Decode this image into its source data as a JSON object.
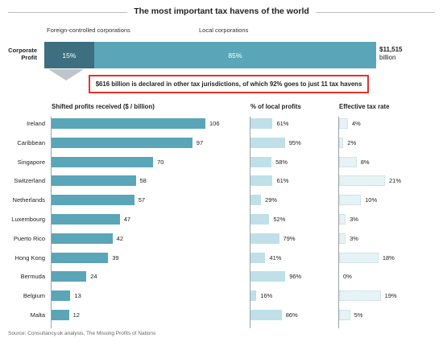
{
  "chart_data": {
    "type": "bar",
    "title": "The most important tax havens of the world",
    "corporate_profit": {
      "label": "Corporate Profit",
      "foreign_label": "Foreign-controlled corporations",
      "local_label": "Local corporations",
      "foreign_share": "15%",
      "local_share": "85%",
      "foreign_value": 15,
      "total_line1": "$11,515",
      "total_line2": "billion"
    },
    "callout": "$616 billion is declared in other tax jurisdictions, of which 92% goes to just 11 tax havens",
    "columns": {
      "shifted": "Shifted profits received ($  / billion)",
      "local": "% of local profits",
      "tax": "Effective tax rate"
    },
    "categories": [
      "Ireland",
      "Caribbean",
      "Singapore",
      "Switzerland",
      "Netherlands",
      "Luxembourg",
      "Puerto Rico",
      "Hong Kong",
      "Bermuda",
      "Belgium",
      "Malta"
    ],
    "series": [
      {
        "name": "Shifted profits received ($  / billion)",
        "values": [
          106,
          97,
          70,
          58,
          57,
          47,
          42,
          39,
          24,
          13,
          12
        ]
      },
      {
        "name": "% of local profits",
        "values": [
          61,
          95,
          58,
          61,
          29,
          52,
          79,
          41,
          96,
          16,
          86
        ]
      },
      {
        "name": "Effective tax rate",
        "values": [
          4,
          2,
          8,
          21,
          10,
          3,
          3,
          18,
          0,
          19,
          5
        ]
      }
    ],
    "series_labels": {
      "shifted": [
        "106",
        "97",
        "70",
        "58",
        "57",
        "47",
        "42",
        "39",
        "24",
        "13",
        "12"
      ],
      "local": [
        "61%",
        "95%",
        "58%",
        "61%",
        "29%",
        "52%",
        "79%",
        "41%",
        "96%",
        "16%",
        "86%"
      ],
      "tax": [
        "4%",
        "2%",
        "8%",
        "21%",
        "10%",
        "3%",
        "3%",
        "18%",
        "0%",
        "19%",
        "5%"
      ]
    },
    "source": "Source: Consultancy.uk analysis, The Missing Profits of Nations",
    "colors": {
      "shifted": "#5aa6b8",
      "local": "#bfe0e8",
      "tax": "#e6f3f6",
      "foreign": "#3d6f80",
      "local_seg": "#5aa6b8",
      "callout_border": "#e0342c"
    }
  }
}
